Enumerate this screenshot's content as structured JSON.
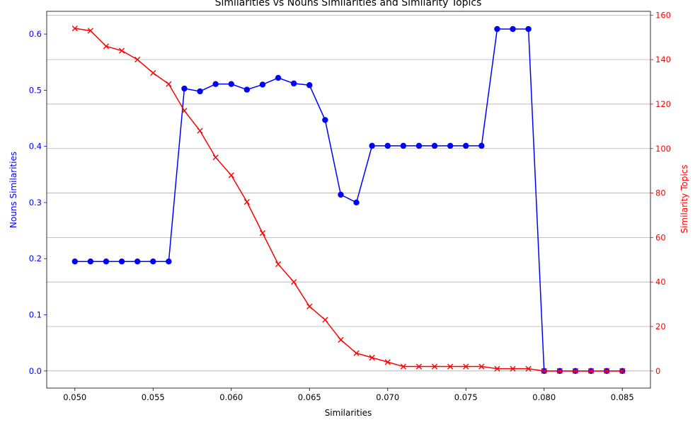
{
  "chart_data": {
    "type": "line",
    "title": "Similarities vs Nouns Similarities and Similarity Topics",
    "xlabel": "Similarities",
    "ylabel_left": "Nouns Similarities",
    "ylabel_right": "Similarity Topics",
    "xlim": [
      0.0482,
      0.0868
    ],
    "ylim_left": [
      -0.0305,
      0.6405
    ],
    "ylim_right": [
      -7.7,
      161.7
    ],
    "x_ticks": [
      "0.050",
      "0.055",
      "0.060",
      "0.065",
      "0.070",
      "0.075",
      "0.080",
      "0.085"
    ],
    "y_left_ticks": [
      "0.0",
      "0.1",
      "0.2",
      "0.3",
      "0.4",
      "0.5",
      "0.6"
    ],
    "y_right_ticks": [
      "0",
      "20",
      "40",
      "60",
      "80",
      "100",
      "120",
      "140",
      "160"
    ],
    "grid": "horizontal lines at right-axis ticks",
    "x": [
      0.05,
      0.051,
      0.052,
      0.053,
      0.054,
      0.055,
      0.056,
      0.057,
      0.058,
      0.059,
      0.06,
      0.061,
      0.062,
      0.063,
      0.064,
      0.065,
      0.066,
      0.067,
      0.068,
      0.069,
      0.07,
      0.071,
      0.072,
      0.073,
      0.074,
      0.075,
      0.076,
      0.077,
      0.078,
      0.079,
      0.08,
      0.081,
      0.082,
      0.083,
      0.084,
      0.085
    ],
    "series": [
      {
        "axis": "left",
        "color": "#0000ff",
        "marker": "circle",
        "values": [
          0.195,
          0.195,
          0.195,
          0.195,
          0.195,
          0.195,
          0.195,
          0.503,
          0.498,
          0.511,
          0.511,
          0.501,
          0.51,
          0.522,
          0.512,
          0.509,
          0.447,
          0.314,
          0.3,
          0.401,
          0.401,
          0.401,
          0.401,
          0.401,
          0.401,
          0.401,
          0.401,
          0.609,
          0.609,
          0.609,
          0.0,
          0.0,
          0.0,
          0.0,
          0.0,
          0.0
        ]
      },
      {
        "axis": "right",
        "color": "#ff0000",
        "marker": "x",
        "values": [
          154,
          153,
          146,
          144,
          140,
          134,
          129,
          117,
          108,
          96,
          88,
          76,
          62,
          48,
          40,
          29,
          23,
          14,
          8,
          6,
          4,
          2,
          2,
          2,
          2,
          2,
          2,
          1,
          1,
          1,
          0,
          0,
          0,
          0,
          0,
          0
        ]
      }
    ],
    "colors": {
      "left_axis": "#0000ff",
      "right_axis": "#ff0000",
      "grid": "#b0b0b0"
    }
  }
}
